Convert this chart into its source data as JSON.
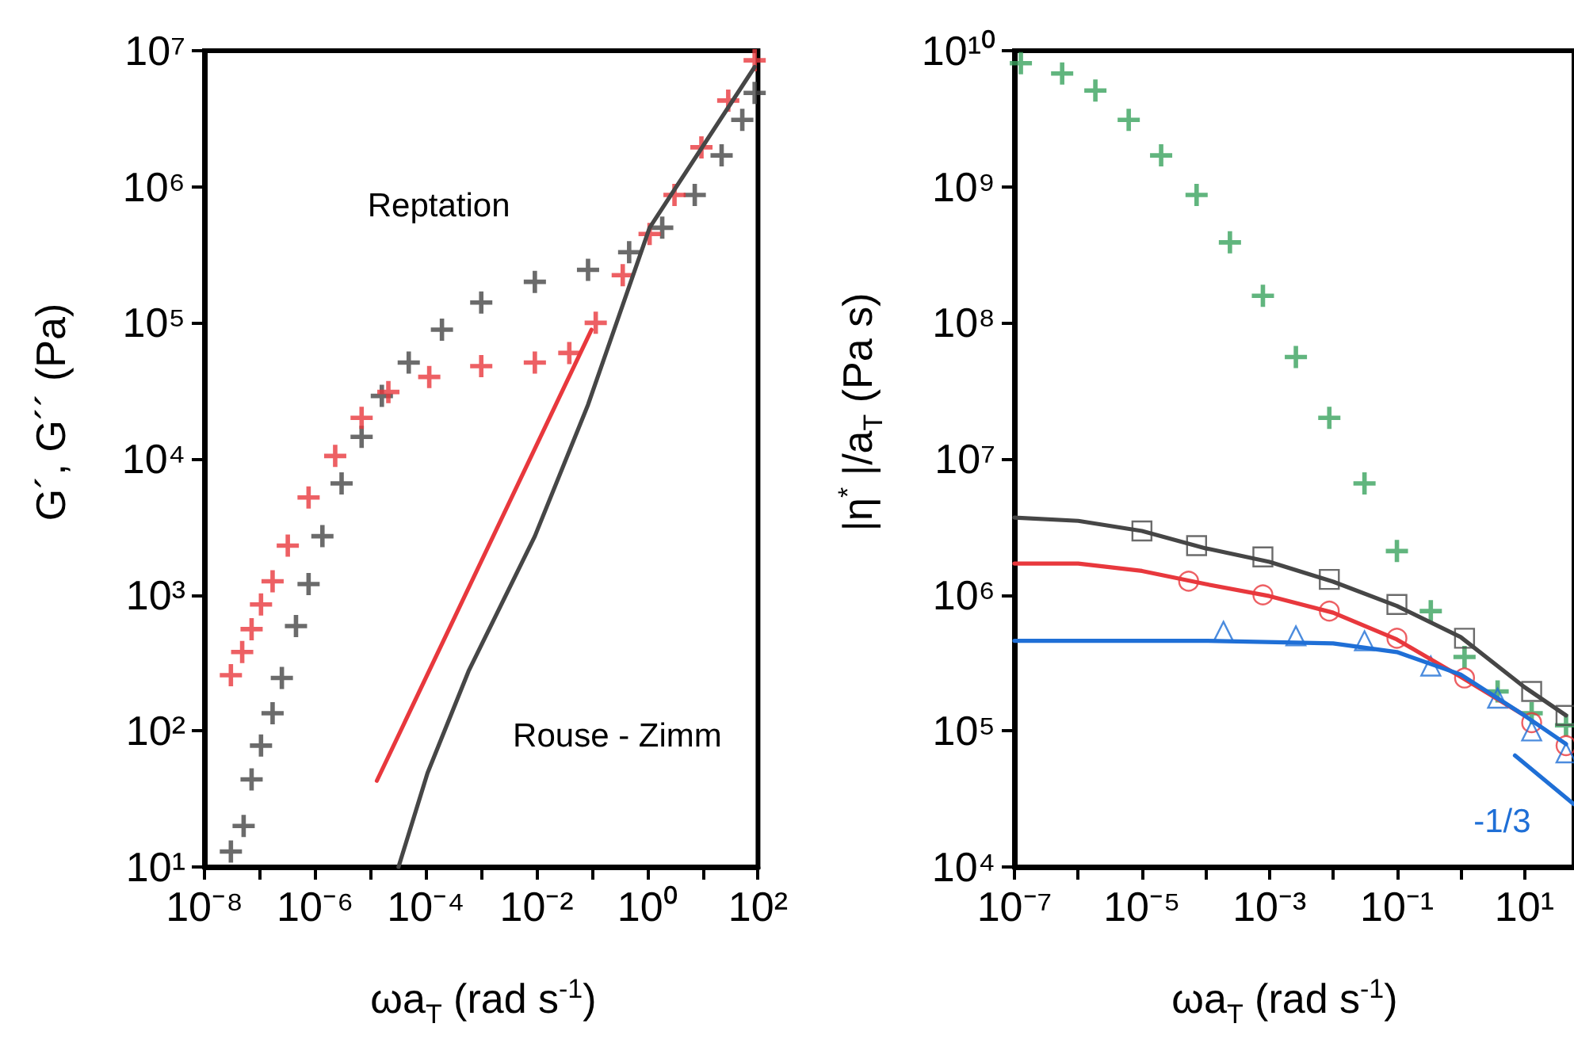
{
  "chart_data": [
    {
      "type": "scatter",
      "xlabel": "ωa$_{T}$ (rad s$^{-1}$)",
      "ylabel": "G´, G´´ (Pa)",
      "log": "xy",
      "grid": false,
      "legend": false,
      "xlim": [
        1e-08,
        100
      ],
      "ylim": [
        10,
        10000000.0
      ],
      "xticks": [
        {
          "value": 1e-08,
          "label": "10⁻⁸"
        },
        {
          "value": 1e-07,
          "label": null
        },
        {
          "value": 1e-06,
          "label": "10⁻⁶"
        },
        {
          "value": 1e-05,
          "label": null
        },
        {
          "value": 0.0001,
          "label": "10⁻⁴"
        },
        {
          "value": 0.001,
          "label": null
        },
        {
          "value": 0.01,
          "label": "10⁻²"
        },
        {
          "value": 0.1,
          "label": null
        },
        {
          "value": 1,
          "label": "10⁰"
        },
        {
          "value": 10,
          "label": null
        },
        {
          "value": 100,
          "label": "10²"
        }
      ],
      "yticks": [
        {
          "value": 10,
          "label": "10¹"
        },
        {
          "value": 100,
          "label": "10²"
        },
        {
          "value": 1000,
          "label": "10³"
        },
        {
          "value": 10000,
          "label": "10⁴"
        },
        {
          "value": 100000,
          "label": "10⁵"
        },
        {
          "value": 1000000,
          "label": "10⁶"
        },
        {
          "value": 10000000,
          "label": "10⁷"
        }
      ],
      "annotations": [
        "Reptation",
        "Rouse - Zimm"
      ],
      "series": [
        {
          "type": "scatter",
          "marker": "cross",
          "color": "#464646",
          "x": [
            3e-08,
            5.1e-08,
            7.1e-08,
            1.05e-07,
            1.7e-07,
            2.5e-07,
            4.5e-07,
            7.6e-07,
            1.35e-06,
            3e-06,
            6.9e-06,
            1.6e-05,
            4.9e-05,
            0.000195,
            0.001,
            0.0093,
            0.085,
            0.47,
            1.86,
            7.2,
            22,
            52,
            87
          ],
          "values": [
            13,
            20,
            44,
            78,
            135,
            245,
            590,
            1200,
            2700,
            6600,
            14500,
            29000,
            51000,
            89000,
            141000,
            200000,
            245000,
            330000,
            500000,
            870000,
            1700000,
            3100000,
            4900000
          ]
        },
        {
          "type": "scatter",
          "marker": "cross",
          "color": "#e8383d",
          "x": [
            3e-08,
            4.8e-08,
            7.1e-08,
            1.05e-07,
            1.7e-07,
            3.2e-07,
            7.6e-07,
            2.3e-06,
            6.9e-06,
            2.1e-05,
            0.000115,
            0.001,
            0.0093,
            0.039,
            0.117,
            0.36,
            1.1,
            3.1,
            9.5,
            29,
            87
          ],
          "values": [
            257,
            380,
            560,
            850,
            1260,
            2300,
            5200,
            10500,
            20000,
            31000,
            40000,
            48000,
            51000,
            60000,
            100000,
            224000,
            450000,
            870000,
            1950000,
            4300000,
            8500000
          ]
        },
        {
          "type": "line",
          "marker": "none",
          "color": "#e8383d",
          "x": [
            1.3e-05,
            0.098
          ],
          "values": [
            43,
            89000
          ]
        },
        {
          "type": "line",
          "marker": "none",
          "color": "#464646",
          "x": [
            3.2e-05,
            0.000107,
            0.00059,
            0.0093,
            0.085,
            1.1,
            87
          ],
          "values": [
            10,
            49,
            275,
            2700,
            25000,
            500000,
            7600000
          ]
        }
      ]
    },
    {
      "type": "scatter",
      "xlabel": "ωa$_{T}$ (rad s$^{-1}$)",
      "ylabel": "|η$^{*}$ |/a$_{T}$ (Pa s)",
      "log": "xy",
      "grid": false,
      "legend": false,
      "xlim": [
        1e-07,
        60
      ],
      "ylim": [
        10000,
        10000000000.0
      ],
      "xticks": [
        {
          "value": 1e-07,
          "label": "10⁻⁷"
        },
        {
          "value": 1e-06,
          "label": null
        },
        {
          "value": 1e-05,
          "label": "10⁻⁵"
        },
        {
          "value": 0.0001,
          "label": null
        },
        {
          "value": 0.001,
          "label": "10⁻³"
        },
        {
          "value": 0.01,
          "label": null
        },
        {
          "value": 0.1,
          "label": "10⁻¹"
        },
        {
          "value": 1,
          "label": null
        },
        {
          "value": 10,
          "label": "10¹"
        }
      ],
      "yticks": [
        {
          "value": 10000,
          "label": "10⁴"
        },
        {
          "value": 100000,
          "label": "10⁵"
        },
        {
          "value": 1000000,
          "label": "10⁶"
        },
        {
          "value": 10000000,
          "label": "10⁷"
        },
        {
          "value": 100000000,
          "label": "10⁸"
        },
        {
          "value": 1000000000,
          "label": "10⁹"
        },
        {
          "value": 10000000000,
          "label": "10¹⁰"
        }
      ],
      "series": [
        {
          "type": "scatter",
          "marker": "cross",
          "color": "#3aa35e",
          "x": [
            1.26e-07,
            5.6e-07,
            1.86e-06,
            6.2e-06,
            2e-05,
            7.2e-05,
            0.00024,
            0.00079,
            0.0026,
            0.0087,
            0.031,
            0.1,
            0.34,
            1.15,
            3.8,
            13,
            45
          ],
          "values": [
            8100000000,
            6800000000,
            5100000000,
            3100000000,
            1700000000,
            870000000,
            390000000,
            158000000,
            56000000,
            20000000,
            6600000,
            2100000,
            760000,
            350000,
            195000,
            135000,
            110000
          ]
        },
        {
          "type": "scatter",
          "marker": "square",
          "color": "#464646",
          "x": [
            1e-05,
            7.2e-05,
            0.00079,
            0.0087,
            0.1,
            1.15,
            13,
            45
          ],
          "values": [
            2950000,
            2300000,
            1900000,
            1300000,
            850000,
            480000,
            195000,
            130000
          ]
        },
        {
          "type": "scatter",
          "marker": "circle",
          "color": "#e8383d",
          "x": [
            5.4e-05,
            0.00079,
            0.0087,
            0.1,
            1.15,
            13,
            45
          ],
          "values": [
            1260000,
            1000000,
            760000,
            480000,
            245000,
            115000,
            78000
          ]
        },
        {
          "type": "scatter",
          "marker": "triangle",
          "color": "#1f6fd6",
          "x": [
            0.00019,
            0.0026,
            0.031,
            0.34,
            3.8,
            13,
            45
          ],
          "values": [
            540000,
            500000,
            460000,
            300000,
            174000,
            100000,
            69000
          ]
        },
        {
          "type": "line",
          "marker": "none",
          "color": "#464646",
          "x": [
            1e-07,
            1e-06,
            1e-05,
            0.0001,
            0.001,
            0.01,
            0.1,
            1,
            10,
            45
          ],
          "values": [
            3700000,
            3500000,
            2950000,
            2200000,
            1750000,
            1250000,
            830000,
            490000,
            210000,
            130000
          ]
        },
        {
          "type": "line",
          "marker": "none",
          "color": "#e8383d",
          "x": [
            1e-07,
            1e-06,
            1e-05,
            0.0001,
            0.001,
            0.01,
            0.1,
            1,
            10
          ],
          "values": [
            1700000,
            1700000,
            1500000,
            1200000,
            980000,
            740000,
            470000,
            250000,
            130000
          ]
        },
        {
          "type": "line",
          "marker": "none",
          "color": "#1f6fd6",
          "x": [
            1e-07,
            0.0001,
            0.01,
            0.1,
            1,
            10,
            45
          ],
          "values": [
            460000,
            460000,
            440000,
            380000,
            260000,
            130000,
            80000
          ]
        },
        {
          "type": "line",
          "marker": "none",
          "name": "-1/3",
          "color": "#1f6fd6",
          "x": [
            7.1,
            59
          ],
          "values": [
            66000,
            29000
          ]
        }
      ]
    }
  ]
}
